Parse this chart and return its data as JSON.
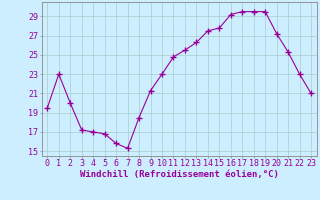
{
  "x": [
    0,
    1,
    2,
    3,
    4,
    5,
    6,
    7,
    8,
    9,
    10,
    11,
    12,
    13,
    14,
    15,
    16,
    17,
    18,
    19,
    20,
    21,
    22,
    23
  ],
  "y": [
    19.5,
    23.0,
    20.0,
    17.2,
    17.0,
    16.8,
    15.8,
    15.3,
    18.5,
    21.3,
    23.0,
    24.8,
    25.5,
    26.3,
    27.5,
    27.8,
    29.2,
    29.5,
    29.5,
    29.5,
    27.2,
    25.3,
    23.0,
    21.0
  ],
  "line_color": "#990099",
  "marker": "+",
  "marker_size": 4,
  "marker_lw": 1.0,
  "bg_color": "#cceeff",
  "grid_color": "#aacccc",
  "xlabel": "Windchill (Refroidissement éolien,°C)",
  "ylim": [
    14.5,
    30.5
  ],
  "xlim": [
    -0.5,
    23.5
  ],
  "yticks": [
    15,
    17,
    19,
    21,
    23,
    25,
    27,
    29
  ],
  "xticks": [
    0,
    1,
    2,
    3,
    4,
    5,
    6,
    7,
    8,
    9,
    10,
    11,
    12,
    13,
    14,
    15,
    16,
    17,
    18,
    19,
    20,
    21,
    22,
    23
  ],
  "xlabel_fontsize": 6.5,
  "tick_fontsize": 6.0,
  "spine_color": "#888888",
  "line_width": 0.8
}
